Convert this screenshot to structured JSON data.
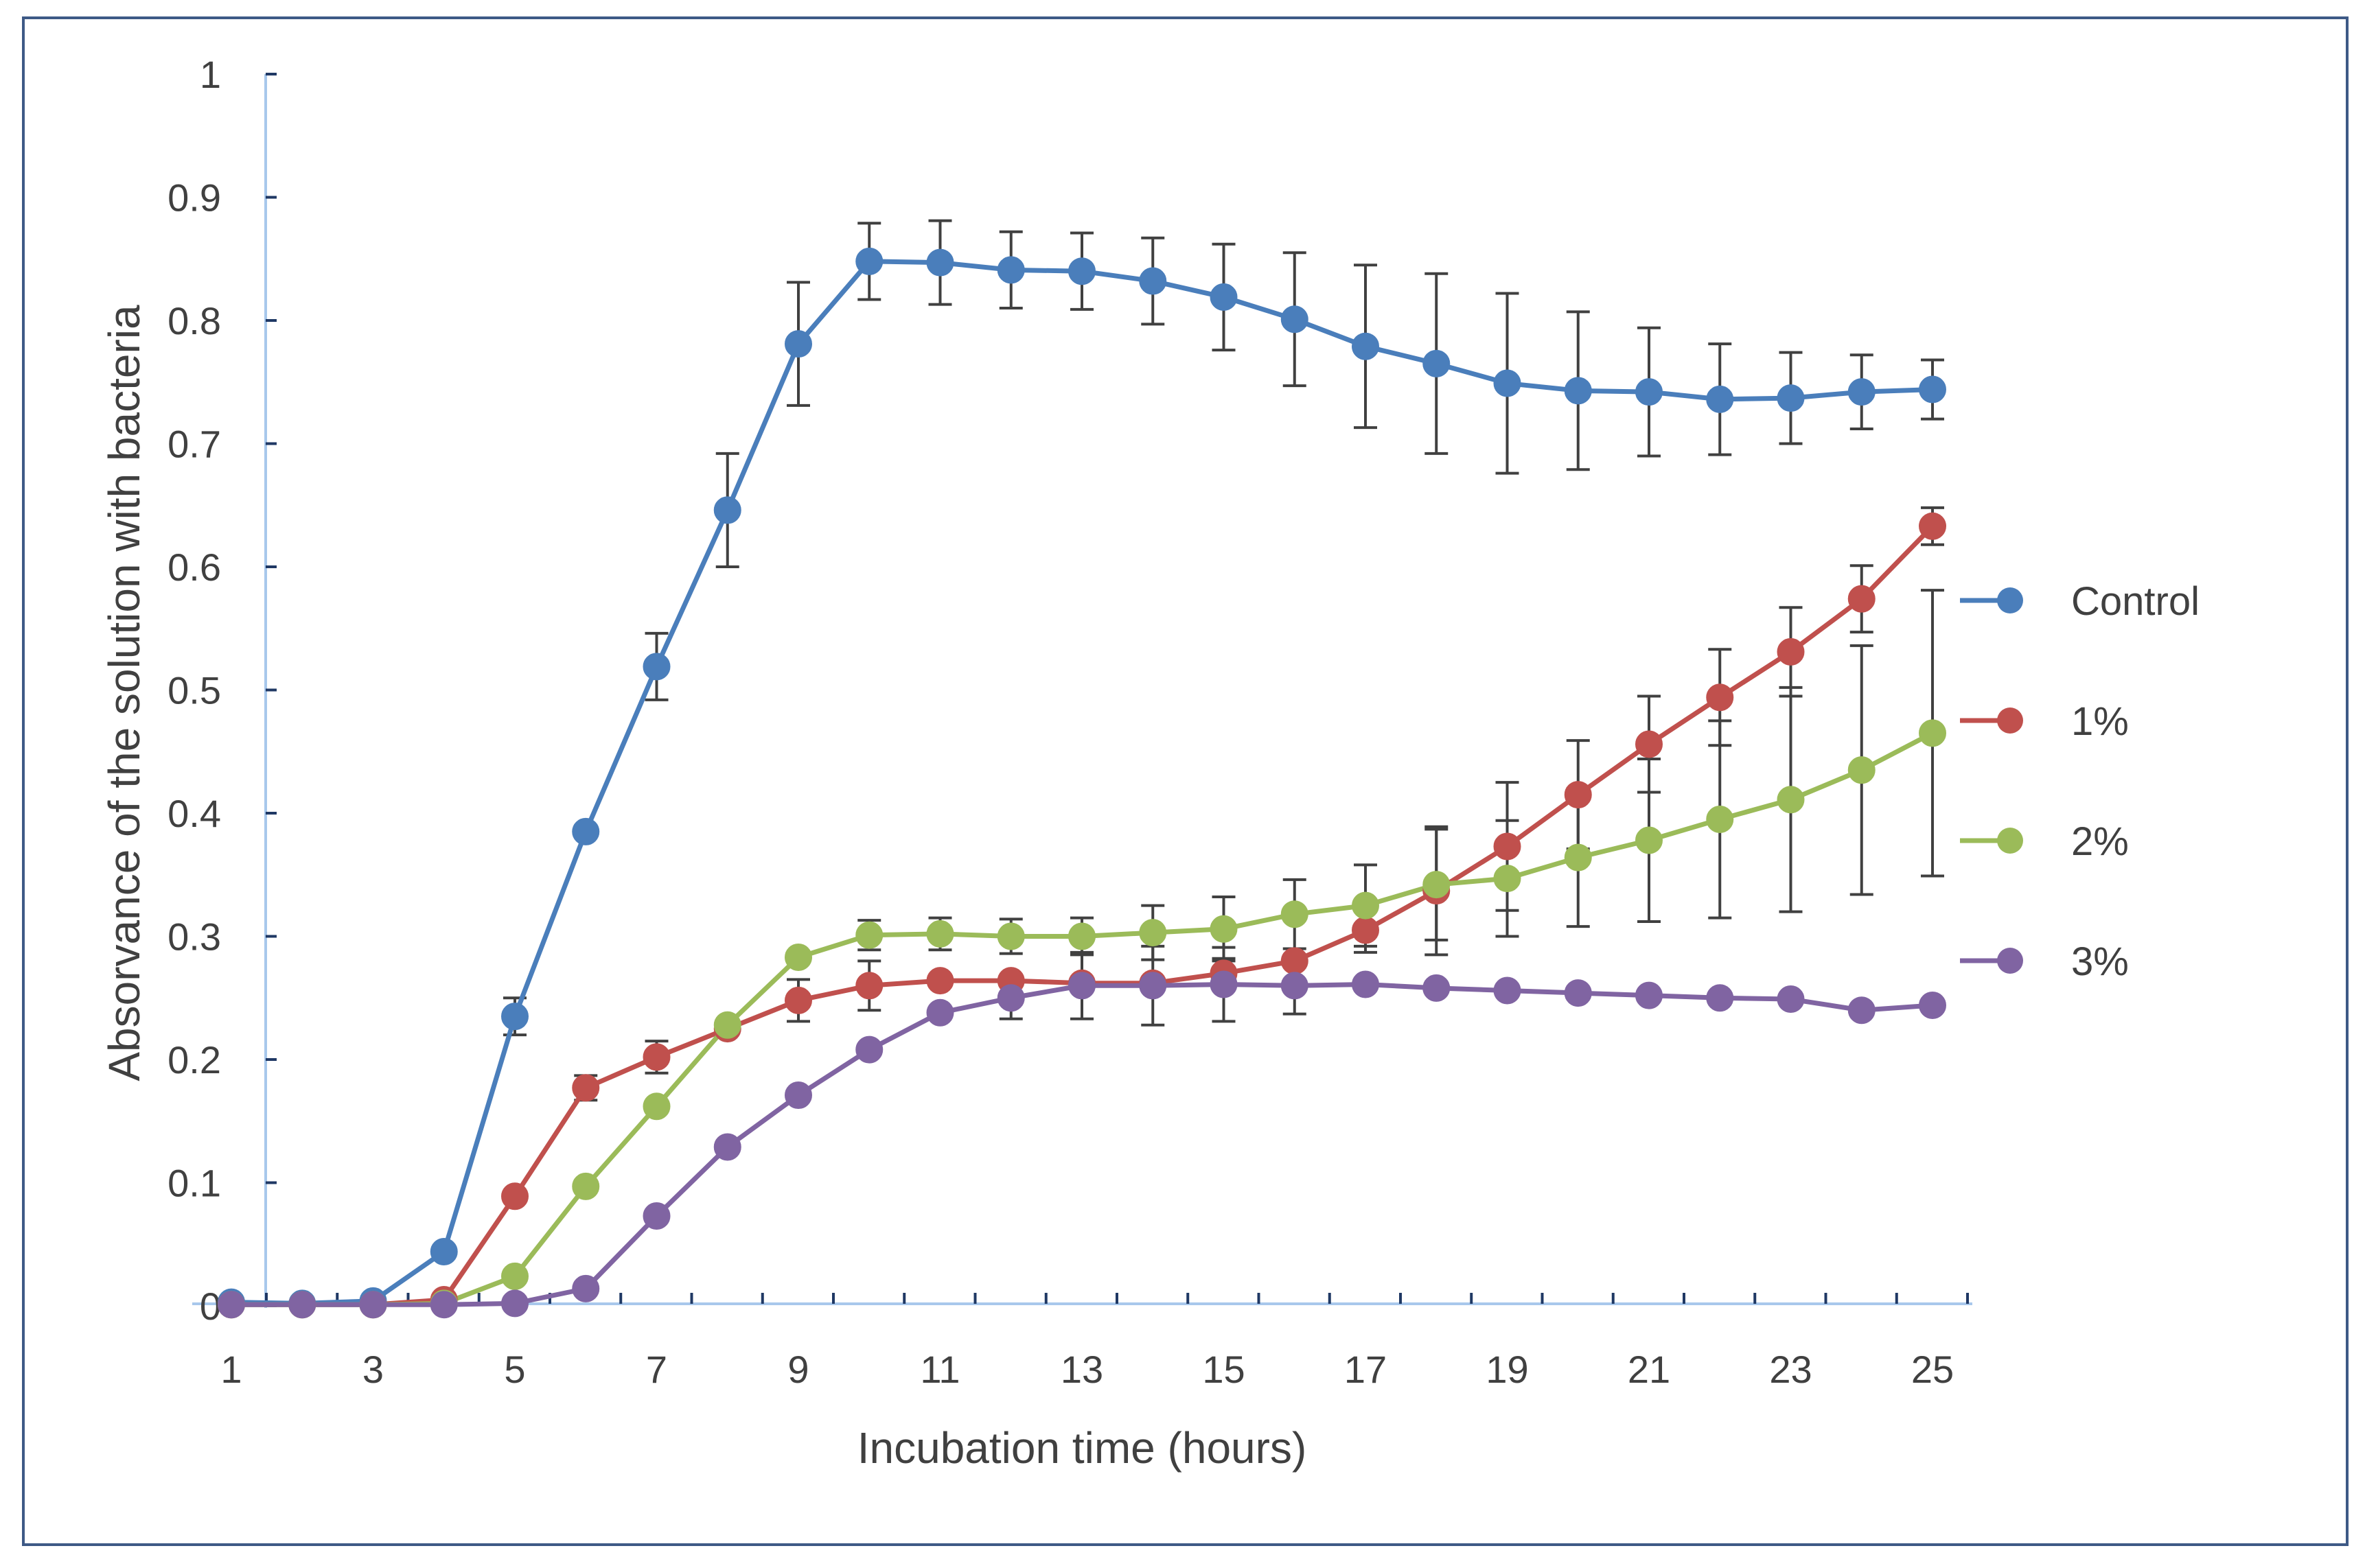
{
  "chart_data": {
    "type": "line",
    "title": "",
    "xlabel": "Incubation time (hours)",
    "ylabel": "Absorvance of the solution with bacteria",
    "x": [
      1,
      2,
      3,
      4,
      5,
      6,
      7,
      8,
      9,
      10,
      11,
      12,
      13,
      14,
      15,
      16,
      17,
      18,
      19,
      20,
      21,
      22,
      23,
      24,
      25
    ],
    "xticks": [
      "1",
      "3",
      "5",
      "7",
      "9",
      "11",
      "13",
      "15",
      "17",
      "19",
      "21",
      "23",
      "25"
    ],
    "xtick_values": [
      1,
      3,
      5,
      7,
      9,
      11,
      13,
      15,
      17,
      19,
      21,
      23,
      25
    ],
    "yticks": [
      "0",
      "0.1",
      "0.2",
      "0.3",
      "0.4",
      "0.5",
      "0.6",
      "0.7",
      "0.8",
      "0.9",
      "1"
    ],
    "ylim": [
      0,
      1
    ],
    "xlim": [
      1,
      25
    ],
    "grid": false,
    "legend_position": "right",
    "series": [
      {
        "name": "Control",
        "color": "#4a7ebb",
        "values": [
          0.003,
          0.002,
          0.004,
          0.044,
          0.235,
          0.385,
          0.519,
          0.646,
          0.781,
          0.848,
          0.847,
          0.841,
          0.84,
          0.832,
          0.819,
          0.801,
          0.779,
          0.765,
          0.749,
          0.743,
          0.742,
          0.736,
          0.737,
          0.742,
          0.744
        ],
        "errors": [
          0,
          0,
          0,
          0,
          0.015,
          0,
          0.027,
          0.046,
          0.05,
          0.031,
          0.034,
          0.031,
          0.031,
          0.035,
          0.043,
          0.054,
          0.066,
          0.073,
          0.073,
          0.064,
          0.052,
          0.045,
          0.037,
          0.03,
          0.024
        ]
      },
      {
        "name": "1%",
        "color": "#c0504d",
        "values": [
          0.001,
          0.001,
          0.001,
          0.005,
          0.089,
          0.177,
          0.202,
          0.225,
          0.248,
          0.26,
          0.264,
          0.264,
          0.262,
          0.262,
          0.27,
          0.28,
          0.305,
          0.337,
          0.373,
          0.415,
          0.456,
          0.494,
          0.531,
          0.574,
          0.633
        ],
        "errors": [
          0,
          0,
          0,
          0,
          0,
          0.01,
          0.013,
          0,
          0.017,
          0.02,
          0,
          0,
          0,
          0,
          0.012,
          0,
          0.018,
          0.052,
          0.052,
          0.044,
          0.039,
          0.039,
          0.036,
          0.027,
          0.015
        ]
      },
      {
        "name": "2%",
        "color": "#9bbb59",
        "values": [
          0.001,
          0.001,
          0.001,
          0.002,
          0.024,
          0.097,
          0.162,
          0.228,
          0.283,
          0.301,
          0.302,
          0.3,
          0.3,
          0.303,
          0.306,
          0.318,
          0.325,
          0.342,
          0.347,
          0.364,
          0.378,
          0.395,
          0.411,
          0.435,
          0.465
        ],
        "errors": [
          0,
          0,
          0,
          0,
          0,
          0,
          0,
          0,
          0,
          0.012,
          0.013,
          0.014,
          0.015,
          0.022,
          0.026,
          0.028,
          0.033,
          0.045,
          0.047,
          0.056,
          0.066,
          0.08,
          0.091,
          0.101,
          0.116
        ]
      },
      {
        "name": "3%",
        "color": "#8064a2",
        "values": [
          0.001,
          0.001,
          0.001,
          0.001,
          0.002,
          0.014,
          0.073,
          0.129,
          0.171,
          0.208,
          0.238,
          0.25,
          0.26,
          0.26,
          0.261,
          0.26,
          0.261,
          0.258,
          0.256,
          0.254,
          0.252,
          0.25,
          0.249,
          0.24,
          0.244
        ],
        "errors": [
          0,
          0,
          0,
          0,
          0,
          0,
          0,
          0,
          0,
          0,
          0,
          0.017,
          0.027,
          0.032,
          0.03,
          0.023,
          0,
          0,
          0,
          0,
          0,
          0,
          0,
          0,
          0
        ]
      }
    ]
  }
}
